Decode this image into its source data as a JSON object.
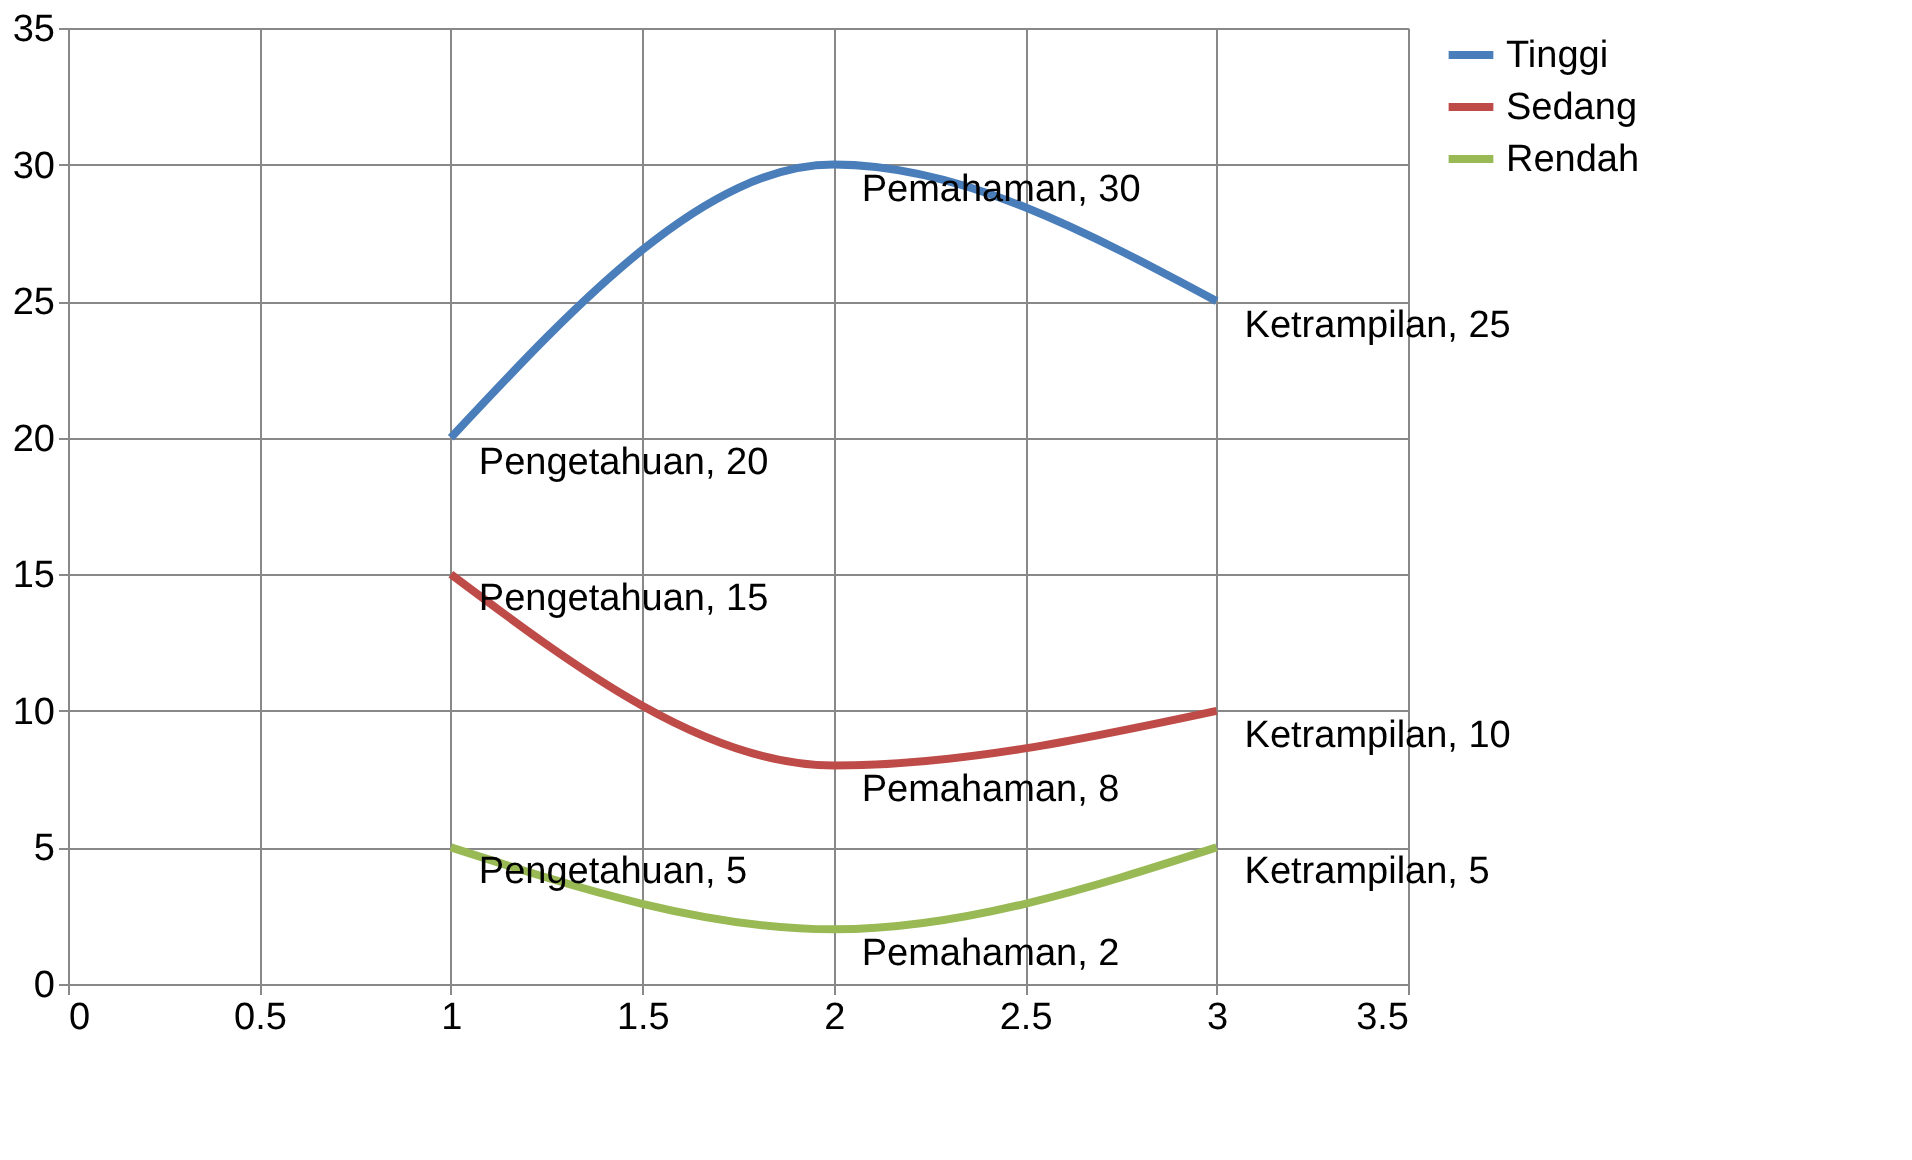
{
  "chart_data": {
    "type": "line",
    "x": [
      1,
      2,
      3
    ],
    "series": [
      {
        "name": "Tinggi",
        "color": "#4a7ebb",
        "values": [
          20,
          30,
          25
        ],
        "value_labels": [
          "Pengetahuan, 20",
          "Pemahaman, 30",
          "Ketrampilan, 25"
        ]
      },
      {
        "name": "Sedang",
        "color": "#be4b48",
        "values": [
          15,
          8,
          10
        ],
        "value_labels": [
          "Pengetahuan, 15",
          "Pemahaman, 8",
          "Ketrampilan, 10"
        ]
      },
      {
        "name": "Rendah",
        "color": "#98b954",
        "values": [
          5,
          2,
          5
        ],
        "value_labels": [
          "Pengetahuan, 5",
          "Pemahaman, 2",
          "Ketrampilan, 5"
        ]
      }
    ],
    "xlim": [
      0,
      3.5
    ],
    "xticks": [
      0,
      0.5,
      1,
      1.5,
      2,
      2.5,
      3,
      3.5
    ],
    "ylim": [
      0,
      35
    ],
    "yticks": [
      0,
      5,
      10,
      15,
      20,
      25,
      30,
      35
    ],
    "grid": true,
    "legend": "right",
    "marker": "none",
    "line_style": "solid"
  }
}
